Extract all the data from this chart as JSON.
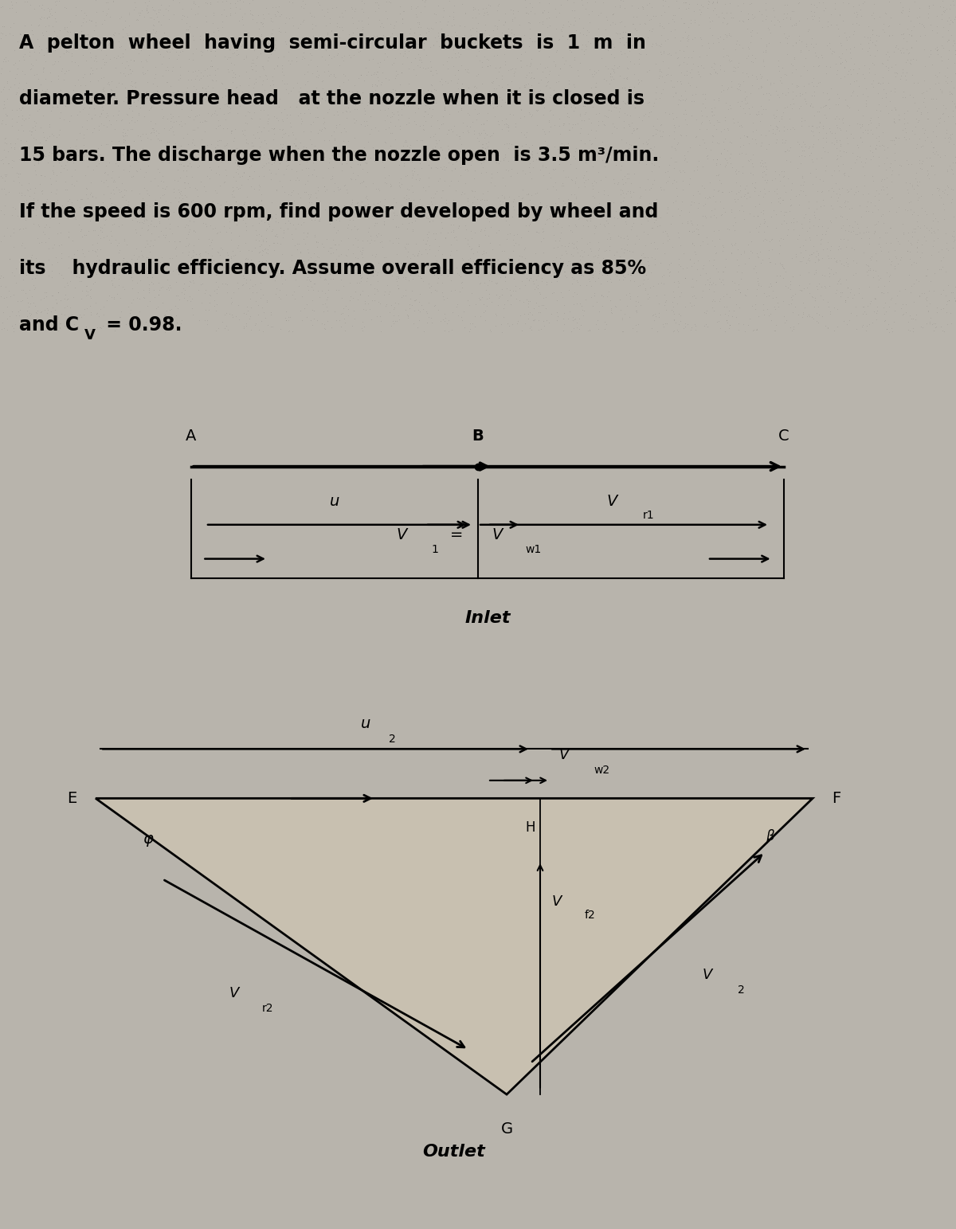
{
  "fig_width": 12.0,
  "fig_height": 15.43,
  "dpi": 100,
  "bg_gray": "#b8b4ac",
  "text_bg": "#b8b4ac",
  "diagram_bg": "#ffffff",
  "triangle_fill": "#c8c0b0",
  "text_lines": [
    "A  pelton  wheel  having  semi-circular  buckets  is  1  m  in",
    "diameter. Pressure head   at the nozzle when it is closed is",
    "15 bars. The discharge when the nozzle open  is 3.5 m³/min.",
    "If the speed is 600 rpm, find power developed by wheel and",
    "its    hydraulic efficiency. Assume overall efficiency as 85%"
  ],
  "last_line_part1": "and C",
  "last_line_sub": "V",
  "last_line_part2": " = 0.98.",
  "inlet_label": "Inlet",
  "outlet_label": "Outlet",
  "A_label": "A",
  "B_label": "B",
  "C_label": "C",
  "E_label": "E",
  "F_label": "F",
  "G_label": "G",
  "H_label": "H",
  "phi_label": "φ",
  "beta_label": "β",
  "u_label": "u",
  "u2_label": "u",
  "Vr1_label": "V",
  "Vr1_sub": "r1",
  "V1_label": "V",
  "V1_sub": "1",
  "Vw1_label": "V",
  "Vw1_sub": "w1",
  "Vw2_label": "V",
  "Vw2_sub": "w2",
  "Vr2_label": "V",
  "Vr2_sub": "r2",
  "Vf2_label": "V",
  "Vf2_sub": "f2",
  "V2_label": "V",
  "V2_sub": "2"
}
